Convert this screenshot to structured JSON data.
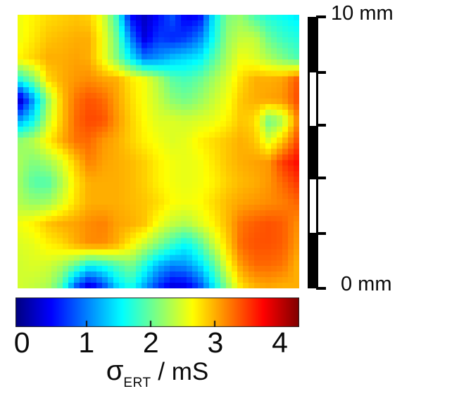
{
  "figure": {
    "background": "#ffffff",
    "text_color": "#0b0b0b",
    "scalebar": {
      "top_label": "10 mm",
      "bottom_label": "0 mm",
      "segments": [
        "black",
        "white",
        "black",
        "white",
        "black"
      ],
      "tick_count": 6
    },
    "colorbar": {
      "tick_labels": [
        "0",
        "1",
        "2",
        "3",
        "4"
      ],
      "tick_values": [
        0,
        1,
        2,
        3,
        4
      ],
      "minor_tick_values": [
        1,
        2,
        3
      ],
      "label_sigma": "σ",
      "label_sub": "ERT",
      "label_rest": " / mS",
      "outline_color": "#222222"
    }
  },
  "chart_data": {
    "type": "heatmap",
    "title": "",
    "xlabel": "",
    "ylabel": "",
    "colorbar_label": "σ_ERT / mS",
    "units": "mS",
    "colormap": "jet",
    "value_range": [
      -0.1,
      4.3
    ],
    "colorbar_tick_range": [
      0,
      4
    ],
    "spatial_extent": {
      "width_label": "10 mm",
      "origin_label": "0 mm",
      "scalebar_segment_mm": 2
    },
    "grid_cols": 21,
    "grid_rows": 14,
    "legend": "conductivity values in mS sampled on a 21x14 grid, row 0 = top of map",
    "values": [
      [
        2.6,
        2.7,
        2.8,
        2.85,
        2.9,
        2.85,
        2.5,
        1.8,
        0.5,
        0.2,
        0.5,
        0.8,
        0.4,
        0.5,
        1.5,
        2.1,
        2.2,
        1.9,
        1.7,
        1.6,
        1.5
      ],
      [
        2.6,
        2.75,
        2.9,
        2.95,
        3.0,
        3.0,
        2.6,
        2.0,
        1.0,
        0.3,
        0.7,
        0.6,
        0.7,
        1.0,
        1.6,
        2.2,
        2.4,
        2.4,
        2.0,
        1.8,
        1.7
      ],
      [
        2.7,
        2.85,
        3.0,
        3.0,
        3.05,
        3.0,
        2.6,
        2.1,
        1.5,
        1.0,
        1.1,
        1.3,
        1.4,
        1.5,
        1.9,
        2.3,
        2.6,
        2.5,
        2.3,
        2.1,
        1.9
      ],
      [
        1.7,
        2.1,
        2.8,
        3.0,
        3.1,
        3.15,
        3.05,
        3.0,
        2.75,
        2.6,
        2.3,
        1.95,
        1.85,
        2.0,
        2.25,
        2.5,
        2.8,
        3.0,
        3.0,
        3.05,
        3.35
      ],
      [
        0.25,
        1.2,
        2.2,
        2.9,
        3.25,
        3.4,
        3.3,
        3.05,
        2.8,
        2.6,
        2.4,
        2.15,
        2.05,
        2.2,
        2.4,
        2.6,
        2.9,
        3.0,
        3.05,
        3.1,
        3.4
      ],
      [
        1.2,
        1.6,
        2.4,
        2.9,
        3.3,
        3.45,
        3.4,
        3.1,
        2.85,
        2.65,
        2.5,
        2.5,
        2.45,
        2.5,
        2.55,
        2.7,
        2.9,
        2.8,
        2.0,
        2.3,
        3.1
      ],
      [
        2.2,
        2.35,
        2.7,
        3.0,
        3.25,
        3.3,
        3.1,
        3.0,
        2.85,
        2.7,
        2.6,
        2.5,
        2.55,
        2.7,
        2.8,
        2.9,
        3.0,
        2.9,
        2.5,
        2.9,
        3.4
      ],
      [
        2.25,
        2.1,
        2.25,
        2.5,
        2.9,
        3.2,
        3.05,
        3.0,
        2.95,
        2.85,
        2.7,
        2.6,
        2.55,
        2.6,
        2.75,
        2.9,
        3.0,
        3.05,
        3.1,
        3.5,
        3.7
      ],
      [
        2.2,
        1.9,
        1.9,
        2.3,
        2.75,
        3.0,
        3.0,
        3.0,
        2.95,
        2.85,
        2.7,
        2.6,
        2.55,
        2.6,
        2.7,
        2.85,
        2.95,
        3.0,
        3.1,
        3.3,
        3.5
      ],
      [
        2.3,
        2.2,
        2.25,
        2.5,
        2.8,
        3.0,
        3.0,
        3.0,
        2.95,
        2.9,
        2.8,
        2.65,
        2.6,
        2.65,
        2.8,
        2.95,
        3.05,
        3.1,
        3.15,
        3.2,
        3.3
      ],
      [
        2.6,
        2.7,
        2.9,
        3.0,
        3.05,
        3.15,
        3.2,
        3.05,
        3.0,
        2.9,
        2.6,
        2.4,
        2.3,
        2.5,
        2.7,
        2.95,
        3.25,
        3.35,
        3.4,
        3.35,
        3.15
      ],
      [
        2.5,
        2.55,
        2.7,
        2.8,
        3.0,
        3.15,
        3.15,
        3.0,
        2.7,
        2.4,
        2.1,
        1.8,
        1.55,
        1.9,
        2.4,
        2.85,
        3.3,
        3.4,
        3.4,
        3.35,
        3.1
      ],
      [
        2.45,
        2.5,
        2.45,
        2.3,
        2.0,
        1.6,
        1.7,
        1.9,
        2.1,
        1.7,
        1.25,
        1.05,
        1.1,
        1.4,
        1.9,
        2.6,
        3.1,
        3.3,
        3.3,
        3.25,
        3.0
      ],
      [
        2.45,
        2.4,
        2.3,
        1.9,
        0.9,
        0.35,
        0.8,
        1.4,
        1.7,
        1.2,
        0.7,
        0.35,
        0.4,
        0.8,
        1.5,
        2.2,
        2.8,
        3.0,
        3.05,
        3.0,
        3.0
      ]
    ]
  }
}
